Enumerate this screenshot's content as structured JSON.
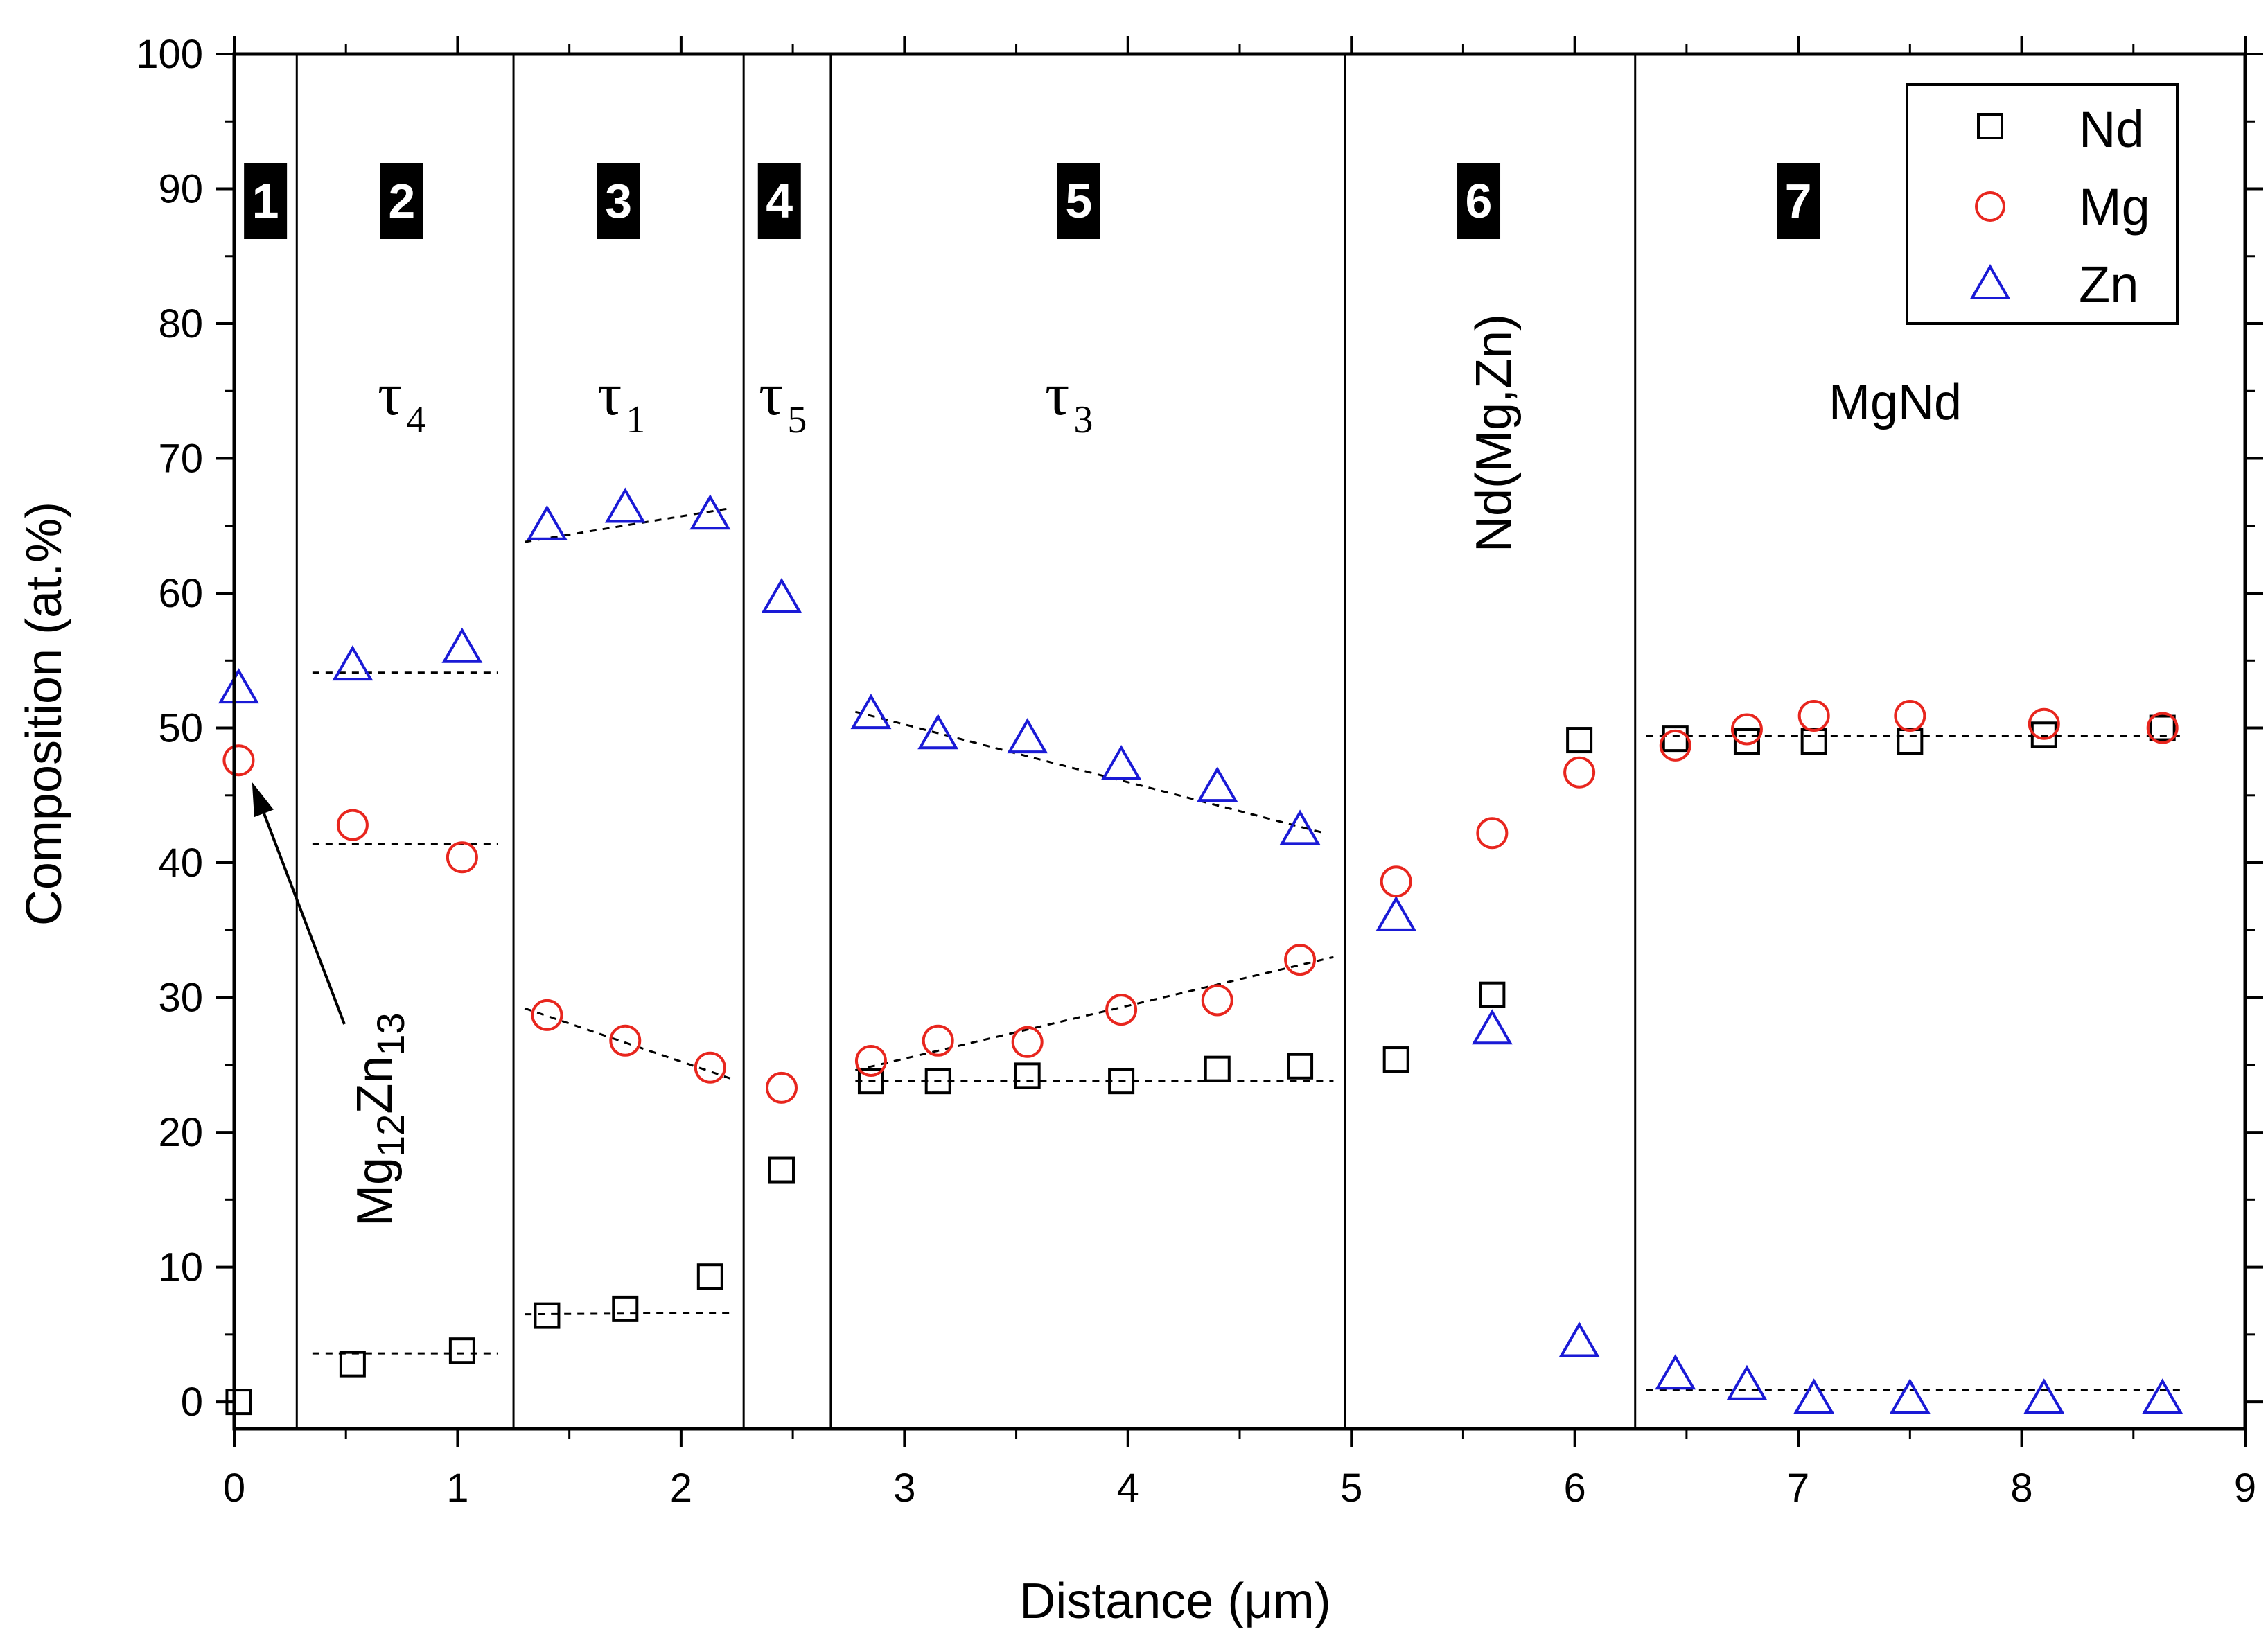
{
  "chart_data": {
    "type": "scatter",
    "xlabel": "Distance (μm)",
    "ylabel": "Composition (at.%)",
    "xlim": [
      0,
      9
    ],
    "ylim": [
      -2,
      100
    ],
    "xticks": [
      0,
      1,
      2,
      3,
      4,
      5,
      6,
      7,
      8,
      9
    ],
    "yticks": [
      0,
      10,
      20,
      30,
      40,
      50,
      60,
      70,
      80,
      90,
      100
    ],
    "legend_position": "top-right",
    "series": [
      {
        "name": "Nd",
        "marker": "square",
        "color": "#000000",
        "points": [
          [
            0.02,
            0
          ],
          [
            0.53,
            2.8
          ],
          [
            1.02,
            3.8
          ],
          [
            1.4,
            6.4
          ],
          [
            1.75,
            6.9
          ],
          [
            2.13,
            9.3
          ],
          [
            2.45,
            17.2
          ],
          [
            2.85,
            23.8
          ],
          [
            3.15,
            23.8
          ],
          [
            3.55,
            24.2
          ],
          [
            3.97,
            23.8
          ],
          [
            4.4,
            24.7
          ],
          [
            4.77,
            24.9
          ],
          [
            5.2,
            25.4
          ],
          [
            5.63,
            30.2
          ],
          [
            6.02,
            49.1
          ],
          [
            6.45,
            49.2
          ],
          [
            6.77,
            49.0
          ],
          [
            7.07,
            49.0
          ],
          [
            7.5,
            49.0
          ],
          [
            8.1,
            49.5
          ],
          [
            8.63,
            50.0
          ]
        ]
      },
      {
        "name": "Mg",
        "marker": "circle",
        "color": "#e8261e",
        "points": [
          [
            0.02,
            47.6
          ],
          [
            0.53,
            42.8
          ],
          [
            1.02,
            40.4
          ],
          [
            1.4,
            28.7
          ],
          [
            1.75,
            26.8
          ],
          [
            2.13,
            24.8
          ],
          [
            2.45,
            23.3
          ],
          [
            2.85,
            25.3
          ],
          [
            3.15,
            26.8
          ],
          [
            3.55,
            26.7
          ],
          [
            3.97,
            29.1
          ],
          [
            4.4,
            29.8
          ],
          [
            4.77,
            32.8
          ],
          [
            5.2,
            38.6
          ],
          [
            5.63,
            42.2
          ],
          [
            6.02,
            46.7
          ],
          [
            6.45,
            48.7
          ],
          [
            6.77,
            49.9
          ],
          [
            7.07,
            50.9
          ],
          [
            7.5,
            50.9
          ],
          [
            8.1,
            50.3
          ],
          [
            8.63,
            50.0
          ]
        ]
      },
      {
        "name": "Zn",
        "marker": "triangle",
        "color": "#1a1ad6",
        "points": [
          [
            0.02,
            52.9
          ],
          [
            0.53,
            54.6
          ],
          [
            1.02,
            55.9
          ],
          [
            1.4,
            65.0
          ],
          [
            1.75,
            66.3
          ],
          [
            2.13,
            65.8
          ],
          [
            2.45,
            59.6
          ],
          [
            2.85,
            51.0
          ],
          [
            3.15,
            49.5
          ],
          [
            3.55,
            49.2
          ],
          [
            3.97,
            47.2
          ],
          [
            4.4,
            45.6
          ],
          [
            4.77,
            42.4
          ],
          [
            5.2,
            36.0
          ],
          [
            5.63,
            27.6
          ],
          [
            6.02,
            4.4
          ],
          [
            6.45,
            2.0
          ],
          [
            6.77,
            1.2
          ],
          [
            7.07,
            0.2
          ],
          [
            7.5,
            0.2
          ],
          [
            8.1,
            0.2
          ],
          [
            8.63,
            0.2
          ]
        ]
      }
    ],
    "fit_lines": [
      {
        "zone": "2",
        "series": "Zn",
        "from": [
          0.35,
          54.1
        ],
        "to": [
          1.18,
          54.1
        ]
      },
      {
        "zone": "2",
        "series": "Mg",
        "from": [
          0.35,
          41.4
        ],
        "to": [
          1.18,
          41.4
        ]
      },
      {
        "zone": "2",
        "series": "Nd",
        "from": [
          0.35,
          3.6
        ],
        "to": [
          1.18,
          3.6
        ]
      },
      {
        "zone": "3",
        "series": "Zn",
        "from": [
          1.3,
          63.8
        ],
        "to": [
          2.22,
          66.3
        ]
      },
      {
        "zone": "3",
        "series": "Mg",
        "from": [
          1.3,
          29.2
        ],
        "to": [
          2.22,
          24.0
        ]
      },
      {
        "zone": "3",
        "series": "Nd",
        "from": [
          1.3,
          6.5
        ],
        "to": [
          2.22,
          6.6
        ]
      },
      {
        "zone": "5",
        "series": "Zn",
        "from": [
          2.78,
          51.2
        ],
        "to": [
          4.88,
          42.2
        ]
      },
      {
        "zone": "5",
        "series": "Mg",
        "from": [
          2.78,
          24.6
        ],
        "to": [
          4.92,
          33.0
        ]
      },
      {
        "zone": "5",
        "series": "Nd",
        "from": [
          2.78,
          23.8
        ],
        "to": [
          4.92,
          23.8
        ]
      },
      {
        "zone": "7",
        "series": "Mg",
        "from": [
          6.32,
          49.4
        ],
        "to": [
          8.72,
          49.4
        ]
      },
      {
        "zone": "7",
        "series": "Zn",
        "from": [
          6.32,
          0.9
        ],
        "to": [
          8.72,
          0.9
        ]
      }
    ],
    "zone_boundaries": [
      0.28,
      1.25,
      2.28,
      2.67,
      4.97,
      6.27
    ],
    "zones": [
      {
        "number": "1",
        "center_x": 0.14
      },
      {
        "number": "2",
        "center_x": 0.75
      },
      {
        "number": "3",
        "center_x": 1.72
      },
      {
        "number": "4",
        "center_x": 2.44
      },
      {
        "number": "5",
        "center_x": 3.78
      },
      {
        "number": "6",
        "center_x": 5.57
      },
      {
        "number": "7",
        "center_x": 7.0
      }
    ],
    "phase_labels": {
      "tau4": {
        "symbol": "τ",
        "sub": "4"
      },
      "tau1": {
        "symbol": "τ",
        "sub": "1"
      },
      "tau5": {
        "symbol": "τ",
        "sub": "5"
      },
      "tau3": {
        "symbol": "τ",
        "sub": "3"
      },
      "nd_mg_zn": "Nd(Mg,Zn)",
      "mgnd": "MgNd",
      "mg12zn13": {
        "a": "Mg",
        "a_sub": "12",
        "b": "Zn",
        "b_sub": "13"
      }
    },
    "annotation_arrow": {
      "label": "Mg12Zn13",
      "points_to": [
        0.08,
        47.0
      ]
    }
  }
}
